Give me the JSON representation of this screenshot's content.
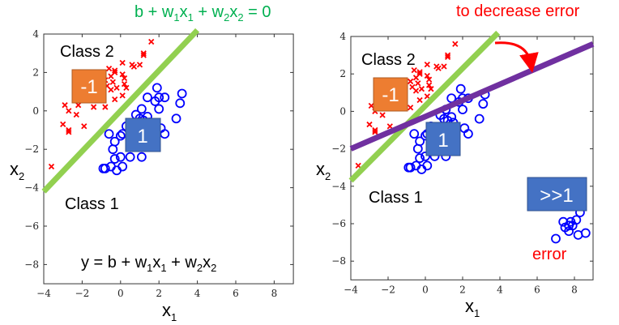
{
  "colors": {
    "class2": "#ff0000",
    "class1": "#0000ff",
    "boundary": "#92d050",
    "new_boundary": "#7030a0",
    "formula": "#00b050",
    "red_text": "#ff0000",
    "orange_box": "#ed7d31",
    "blue_box": "#4472c4"
  },
  "left": {
    "boundary_eq": [
      "b + w",
      "1",
      "x",
      "1",
      " + w",
      "2",
      "x",
      "2",
      " = 0"
    ],
    "class2_label": "Class 2",
    "class1_label": "Class 1",
    "neg_box": "-1",
    "pos_box": "1",
    "model_eq": [
      "y = b + w",
      "1",
      "x",
      "1",
      " + w",
      "2",
      "x",
      "2"
    ],
    "xlabel": [
      "x",
      "1"
    ],
    "ylabel": [
      "x",
      "2"
    ]
  },
  "right": {
    "top_note": "to decrease error",
    "class2_label": "Class 2",
    "class1_label": "Class 1",
    "neg_box": "-1",
    "pos_box": "1",
    "big_box": ">>1",
    "error_label": "error",
    "xlabel": [
      "x",
      "1"
    ],
    "ylabel": [
      "x",
      "2"
    ]
  },
  "chart_data": [
    {
      "type": "scatter",
      "xlim": [
        -4,
        9
      ],
      "ylim": [
        -9,
        4
      ],
      "xticks": [
        "−4",
        "−2",
        "0",
        "2",
        "4",
        "6",
        "8"
      ],
      "yticks": [
        "4",
        "2",
        "0",
        "−2",
        "−4",
        "−6",
        "−8"
      ],
      "series": [
        {
          "name": "Class 2",
          "marker": "x",
          "points": [
            [
              -3.6,
              -2.9
            ],
            [
              -3,
              -0.7
            ],
            [
              -2.9,
              0.3
            ],
            [
              -2.7,
              0
            ],
            [
              -2.7,
              -1
            ],
            [
              -2.7,
              -1.1
            ],
            [
              -2.3,
              -0.2
            ],
            [
              -2.2,
              0.3
            ],
            [
              -1.9,
              -0.8
            ],
            [
              -1.4,
              0.2
            ],
            [
              -0.8,
              0.2
            ],
            [
              -0.6,
              2.2
            ],
            [
              -0.5,
              1.8
            ],
            [
              -0.4,
              1.5
            ],
            [
              -0.3,
              2.1
            ],
            [
              -0.3,
              2
            ],
            [
              -0.2,
              1.2
            ],
            [
              -0.3,
              0.6
            ],
            [
              0.1,
              2.5
            ],
            [
              0.1,
              1.9
            ],
            [
              0.2,
              1.7
            ],
            [
              0.2,
              1.4
            ],
            [
              0.3,
              1.2
            ],
            [
              0.1,
              0.8
            ],
            [
              -0.5,
              1.1
            ],
            [
              -0.7,
              1.3
            ],
            [
              0.6,
              2.4
            ],
            [
              0.7,
              2.3
            ],
            [
              1,
              2.4
            ],
            [
              1.2,
              3
            ],
            [
              1.2,
              2.9
            ],
            [
              1.6,
              3.6
            ],
            [
              -0.8,
              1.6
            ]
          ]
        },
        {
          "name": "Class 1",
          "marker": "o",
          "points": [
            [
              -0.9,
              -3
            ],
            [
              -0.8,
              -3
            ],
            [
              -0.6,
              -1.2
            ],
            [
              -0.4,
              -2
            ],
            [
              -0.3,
              -1.6
            ],
            [
              -0.3,
              -2.5
            ],
            [
              -0.5,
              -2.9
            ],
            [
              -0.2,
              -3.1
            ],
            [
              0,
              -2.4
            ],
            [
              0.1,
              -2.9
            ],
            [
              0,
              -1.3
            ],
            [
              0.1,
              -1.2
            ],
            [
              0.3,
              -0.8
            ],
            [
              0.5,
              -2.4
            ],
            [
              0.8,
              -0.2
            ],
            [
              1.1,
              0.1
            ],
            [
              1,
              -0.4
            ],
            [
              1.2,
              -0.5
            ],
            [
              1.4,
              -0.3
            ],
            [
              1.5,
              -0.6
            ],
            [
              1.1,
              -2.4
            ],
            [
              1.4,
              0.7
            ],
            [
              1.8,
              0.5
            ],
            [
              1.9,
              1.2
            ],
            [
              2,
              0.7
            ],
            [
              2,
              0.1
            ],
            [
              2.3,
              0.7
            ],
            [
              2.1,
              -0.9
            ],
            [
              2.3,
              -1.2
            ],
            [
              2.9,
              -0.4
            ],
            [
              3.1,
              0.4
            ],
            [
              3.2,
              0.9
            ],
            [
              1.6,
              -0.9
            ]
          ]
        }
      ],
      "lines": [
        {
          "name": "boundary",
          "from": [
            -4,
            -4.2
          ],
          "to": [
            4,
            4.2
          ]
        }
      ]
    },
    {
      "type": "scatter",
      "xlim": [
        -4,
        9
      ],
      "ylim": [
        -9,
        4
      ],
      "xticks": [
        "−4",
        "−2",
        "0",
        "2",
        "4",
        "6",
        "8"
      ],
      "yticks": [
        "4",
        "2",
        "0",
        "−2",
        "−4",
        "−6",
        "−8"
      ],
      "series": [
        {
          "name": "Class 2",
          "marker": "x",
          "same_as": "left"
        },
        {
          "name": "Class 1",
          "marker": "o",
          "same_as": "left"
        },
        {
          "name": "Class 1 outliers",
          "marker": "o",
          "points": [
            [
              7,
              -6.8
            ],
            [
              7.4,
              -5.9
            ],
            [
              7.5,
              -6.2
            ],
            [
              7.7,
              -6.4
            ],
            [
              7.8,
              -5.9
            ],
            [
              7.9,
              -6.1
            ],
            [
              8.1,
              -5.8
            ],
            [
              8.2,
              -6.6
            ],
            [
              8.3,
              -5.4
            ],
            [
              8.6,
              -6.5
            ],
            [
              7.7,
              -6.1
            ]
          ]
        }
      ],
      "lines": [
        {
          "name": "boundary",
          "from": [
            -4,
            -3.7
          ],
          "to": [
            3.9,
            4.2
          ]
        },
        {
          "name": "new_boundary",
          "from": [
            -4,
            -2
          ],
          "to": [
            9,
            3.6
          ]
        }
      ]
    }
  ]
}
